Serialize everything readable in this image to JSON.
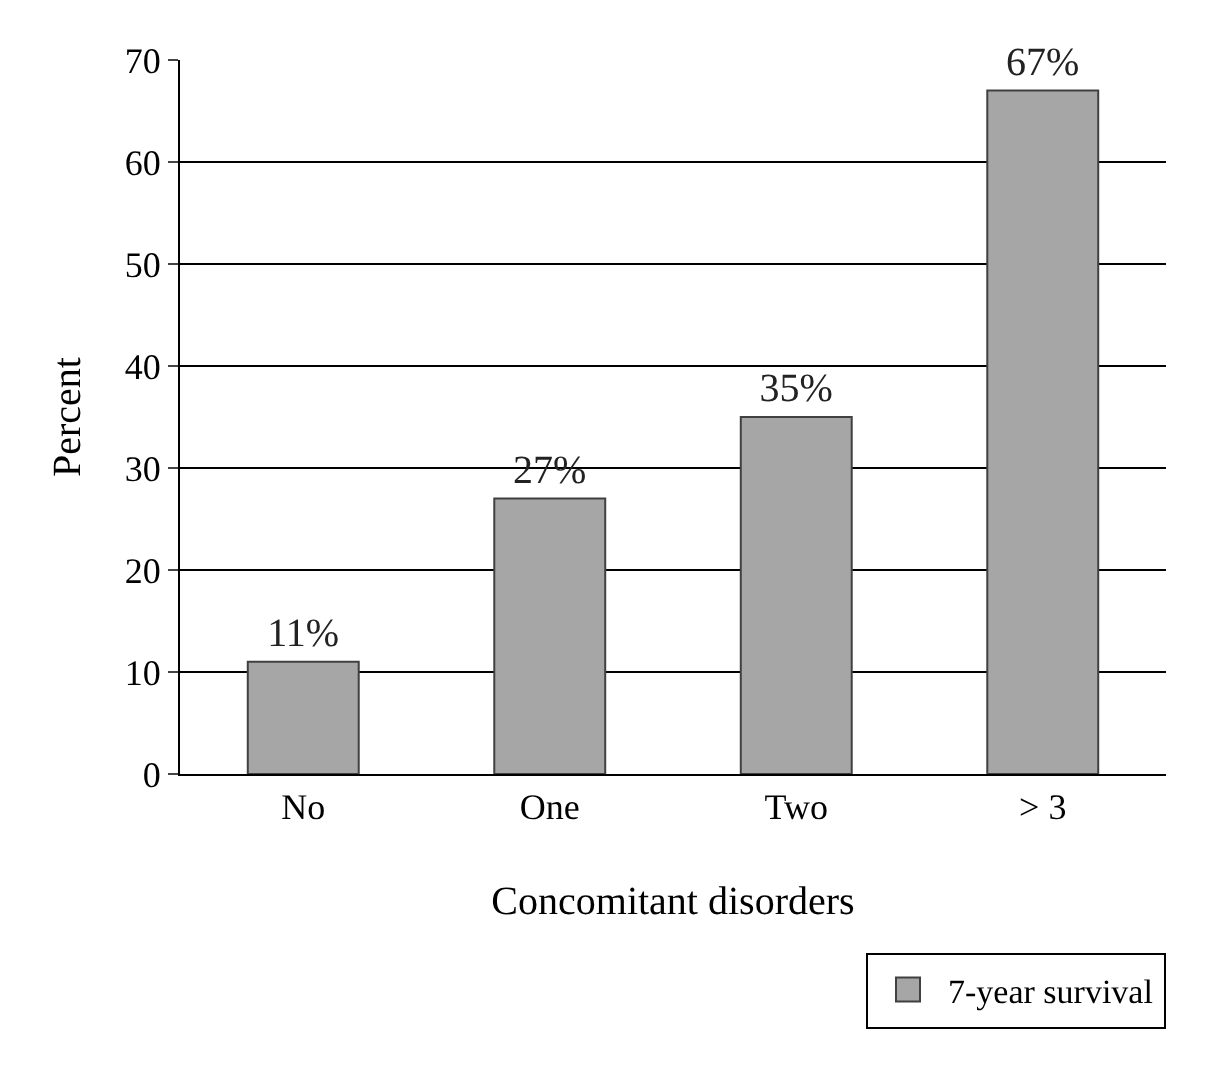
{
  "chart_data": {
    "type": "bar",
    "xlabel": "Concomitant disorders",
    "ylabel": "Percent",
    "categories": [
      "No",
      "One",
      "Two",
      "> 3"
    ],
    "series": [
      {
        "name": "7-year survival",
        "color": "#a6a6a6",
        "values": [
          11,
          27,
          35,
          67
        ],
        "value_labels": [
          "11%",
          "27%",
          "35%",
          "67%"
        ]
      }
    ],
    "ylim": [
      0,
      70
    ],
    "yticks": [
      0,
      10,
      20,
      30,
      40,
      50,
      60,
      70
    ],
    "grid": "y",
    "legend": "bottom right"
  }
}
